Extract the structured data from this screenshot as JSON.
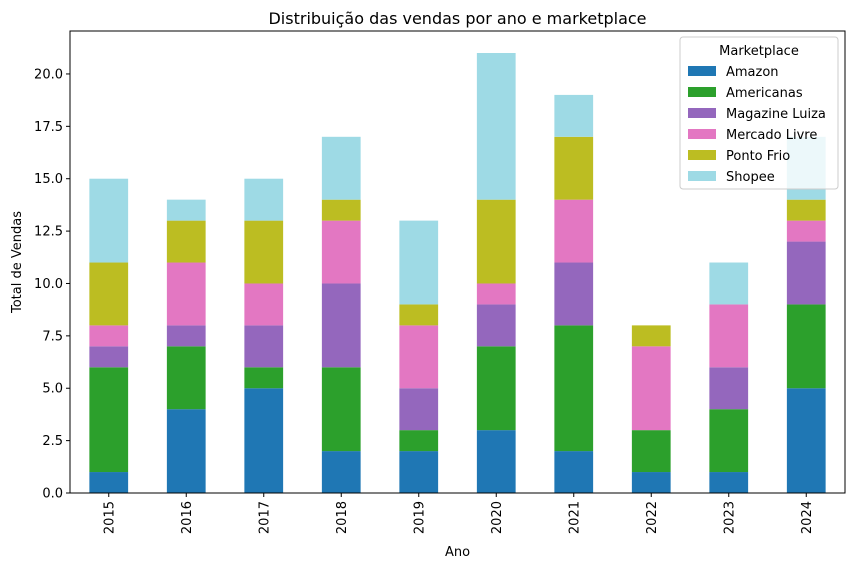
{
  "chart_data": {
    "type": "bar",
    "stacked": true,
    "title": "Distribuição das vendas por ano e marketplace",
    "xlabel": "Ano",
    "ylabel": "Total de Vendas",
    "ylim": [
      0,
      22.05
    ],
    "yticks": [
      "0.0",
      "2.5",
      "5.0",
      "7.5",
      "10.0",
      "12.5",
      "15.0",
      "17.5",
      "20.0"
    ],
    "categories": [
      "2015",
      "2016",
      "2017",
      "2018",
      "2019",
      "2020",
      "2021",
      "2022",
      "2023",
      "2024"
    ],
    "legend_title": "Marketplace",
    "legend_position": "top-right",
    "grid": false,
    "series": [
      {
        "name": "Amazon",
        "color": "#1f77b4",
        "values": [
          1,
          4,
          5,
          2,
          2,
          3,
          2,
          1,
          1,
          5
        ]
      },
      {
        "name": "Americanas",
        "color": "#2ca02c",
        "values": [
          5,
          3,
          1,
          4,
          1,
          4,
          6,
          2,
          3,
          4
        ]
      },
      {
        "name": "Magazine Luiza",
        "color": "#9467bd",
        "values": [
          1,
          1,
          2,
          4,
          2,
          2,
          3,
          0,
          2,
          3
        ]
      },
      {
        "name": "Mercado Livre",
        "color": "#e377c2",
        "values": [
          1,
          3,
          2,
          3,
          3,
          1,
          3,
          4,
          3,
          1
        ]
      },
      {
        "name": "Ponto Frio",
        "color": "#bcbd22",
        "values": [
          3,
          2,
          3,
          1,
          1,
          4,
          3,
          1,
          0,
          1
        ]
      },
      {
        "name": "Shopee",
        "color": "#9edae5",
        "values": [
          4,
          1,
          2,
          3,
          4,
          7,
          2,
          0,
          2,
          3
        ]
      }
    ]
  }
}
